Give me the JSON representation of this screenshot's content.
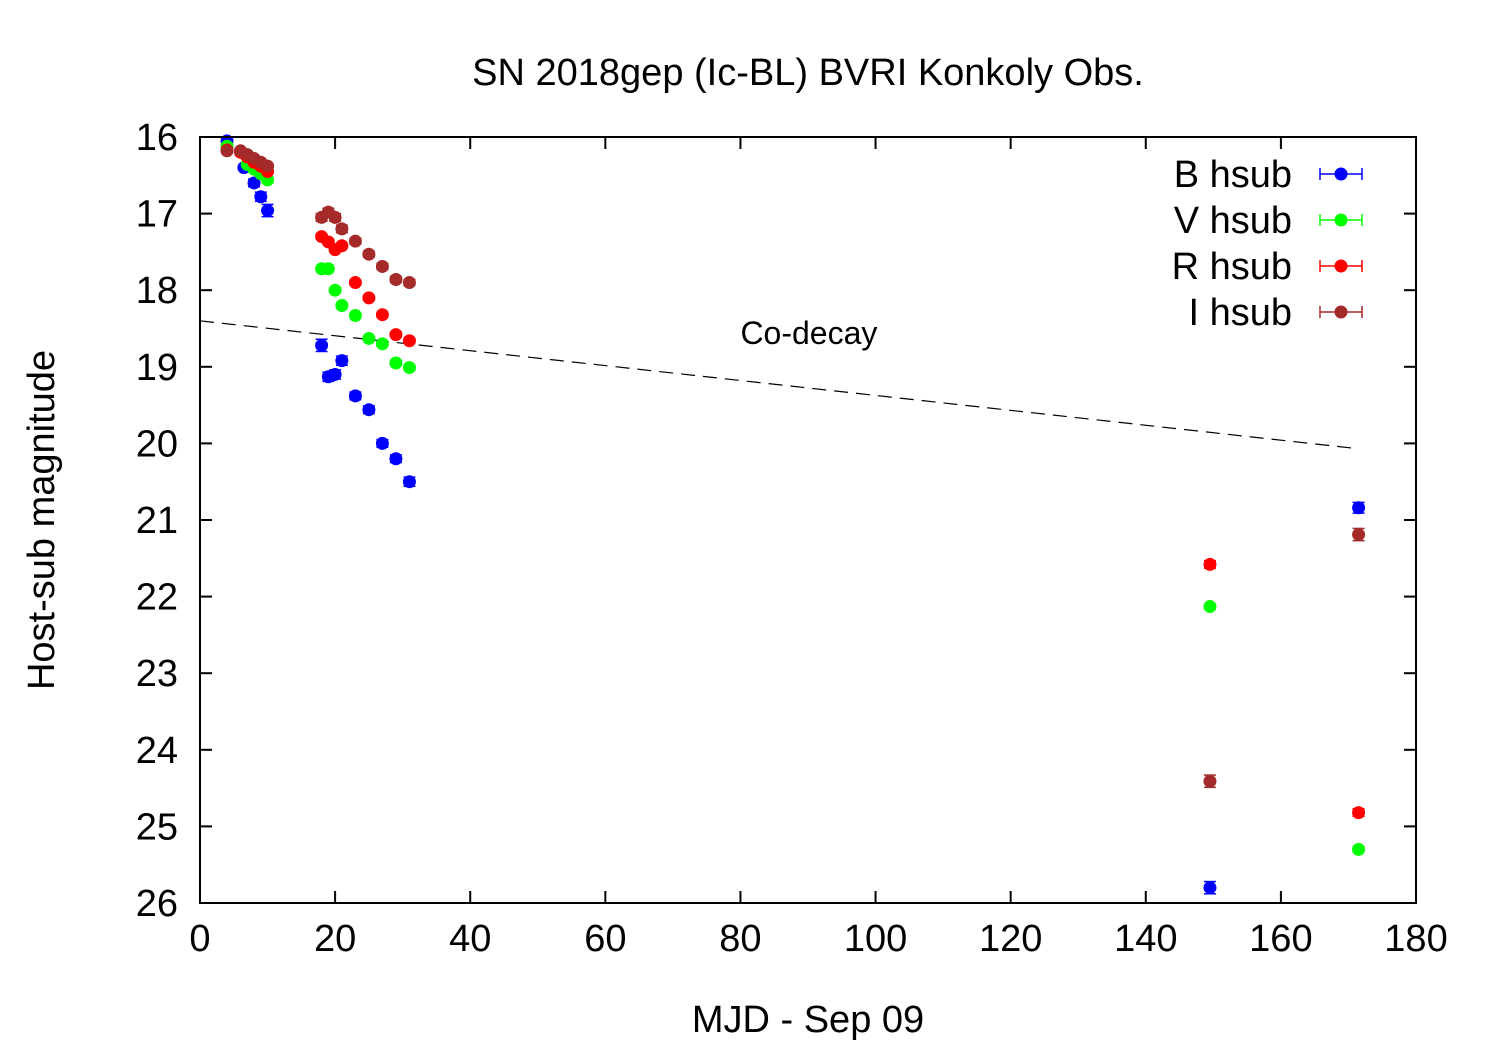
{
  "chart_data": {
    "type": "scatter",
    "title": "SN 2018gep (Ic-BL) BVRI Konkoly Obs.",
    "xlabel": "MJD - Sep 09",
    "ylabel": "Host-sub magnitude",
    "xlim": [
      0,
      180
    ],
    "ylim": [
      26,
      16
    ],
    "y_inverted": true,
    "grid": false,
    "legend_position": "top-right",
    "xticks": [
      0,
      20,
      40,
      60,
      80,
      100,
      120,
      140,
      160,
      180
    ],
    "yticks": [
      16,
      17,
      18,
      19,
      20,
      21,
      22,
      23,
      24,
      25,
      26
    ],
    "series": [
      {
        "name": "B hsub",
        "color": "#0000ff",
        "points": [
          {
            "x": 4.0,
            "y": 16.05,
            "err": 0.03
          },
          {
            "x": 6.5,
            "y": 16.4,
            "err": 0.03
          },
          {
            "x": 8.0,
            "y": 16.6,
            "err": 0.05
          },
          {
            "x": 9.0,
            "y": 16.78,
            "err": 0.06
          },
          {
            "x": 10.0,
            "y": 16.96,
            "err": 0.08
          },
          {
            "x": 18.0,
            "y": 18.72,
            "err": 0.08
          },
          {
            "x": 19.0,
            "y": 19.13,
            "err": 0.06
          },
          {
            "x": 20.0,
            "y": 19.1,
            "err": 0.06
          },
          {
            "x": 21.0,
            "y": 18.92,
            "err": 0.06
          },
          {
            "x": 23.0,
            "y": 19.38,
            "err": 0.05
          },
          {
            "x": 25.0,
            "y": 19.56,
            "err": 0.05
          },
          {
            "x": 27.0,
            "y": 20.0,
            "err": 0.05
          },
          {
            "x": 29.0,
            "y": 20.2,
            "err": 0.05
          },
          {
            "x": 31.0,
            "y": 20.5,
            "err": 0.06
          },
          {
            "x": 149.5,
            "y": 25.8,
            "err": 0.08
          },
          {
            "x": 171.5,
            "y": 20.84,
            "err": 0.07
          }
        ]
      },
      {
        "name": "V hsub",
        "color": "#00ff00",
        "points": [
          {
            "x": 4.0,
            "y": 16.12,
            "err": 0.03
          },
          {
            "x": 7.0,
            "y": 16.36,
            "err": 0.03
          },
          {
            "x": 8.0,
            "y": 16.42,
            "err": 0.03
          },
          {
            "x": 9.0,
            "y": 16.48,
            "err": 0.03
          },
          {
            "x": 10.0,
            "y": 16.56,
            "err": 0.04
          },
          {
            "x": 18.0,
            "y": 17.72,
            "err": 0.03
          },
          {
            "x": 19.0,
            "y": 17.72,
            "err": 0.03
          },
          {
            "x": 20.0,
            "y": 18.0,
            "err": 0.03
          },
          {
            "x": 21.0,
            "y": 18.2,
            "err": 0.03
          },
          {
            "x": 23.0,
            "y": 18.33,
            "err": 0.03
          },
          {
            "x": 25.0,
            "y": 18.63,
            "err": 0.03
          },
          {
            "x": 27.0,
            "y": 18.7,
            "err": 0.03
          },
          {
            "x": 29.0,
            "y": 18.95,
            "err": 0.03
          },
          {
            "x": 31.0,
            "y": 19.01,
            "err": 0.03
          },
          {
            "x": 149.5,
            "y": 22.13,
            "err": 0.03
          },
          {
            "x": 171.5,
            "y": 25.3,
            "err": 0.03
          }
        ]
      },
      {
        "name": "R hsub",
        "color": "#ff0000",
        "points": [
          {
            "x": 4.0,
            "y": 16.17,
            "err": 0.03
          },
          {
            "x": 6.0,
            "y": 16.2,
            "err": 0.03
          },
          {
            "x": 7.0,
            "y": 16.26,
            "err": 0.03
          },
          {
            "x": 8.0,
            "y": 16.33,
            "err": 0.03
          },
          {
            "x": 9.0,
            "y": 16.38,
            "err": 0.03
          },
          {
            "x": 10.0,
            "y": 16.45,
            "err": 0.03
          },
          {
            "x": 18.0,
            "y": 17.3,
            "err": 0.03
          },
          {
            "x": 19.0,
            "y": 17.37,
            "err": 0.03
          },
          {
            "x": 20.0,
            "y": 17.47,
            "err": 0.03
          },
          {
            "x": 21.0,
            "y": 17.42,
            "err": 0.03
          },
          {
            "x": 23.0,
            "y": 17.9,
            "err": 0.03
          },
          {
            "x": 25.0,
            "y": 18.1,
            "err": 0.03
          },
          {
            "x": 27.0,
            "y": 18.32,
            "err": 0.03
          },
          {
            "x": 29.0,
            "y": 18.58,
            "err": 0.03
          },
          {
            "x": 31.0,
            "y": 18.66,
            "err": 0.03
          },
          {
            "x": 149.5,
            "y": 21.58,
            "err": 0.05
          },
          {
            "x": 171.5,
            "y": 24.82,
            "err": 0.05
          }
        ]
      },
      {
        "name": "I hsub",
        "color": "#a52a2a",
        "points": [
          {
            "x": 4.0,
            "y": 16.18,
            "err": 0.03
          },
          {
            "x": 6.0,
            "y": 16.18,
            "err": 0.03
          },
          {
            "x": 7.0,
            "y": 16.23,
            "err": 0.03
          },
          {
            "x": 8.0,
            "y": 16.28,
            "err": 0.03
          },
          {
            "x": 9.0,
            "y": 16.33,
            "err": 0.03
          },
          {
            "x": 10.0,
            "y": 16.38,
            "err": 0.03
          },
          {
            "x": 18.0,
            "y": 17.05,
            "err": 0.05
          },
          {
            "x": 19.0,
            "y": 16.98,
            "err": 0.05
          },
          {
            "x": 20.0,
            "y": 17.05,
            "err": 0.05
          },
          {
            "x": 21.0,
            "y": 17.2,
            "err": 0.05
          },
          {
            "x": 23.0,
            "y": 17.36,
            "err": 0.04
          },
          {
            "x": 25.0,
            "y": 17.53,
            "err": 0.04
          },
          {
            "x": 27.0,
            "y": 17.69,
            "err": 0.04
          },
          {
            "x": 29.0,
            "y": 17.86,
            "err": 0.04
          },
          {
            "x": 31.0,
            "y": 17.9,
            "err": 0.04
          },
          {
            "x": 149.5,
            "y": 24.41,
            "err": 0.08
          },
          {
            "x": 171.5,
            "y": 21.19,
            "err": 0.08
          }
        ]
      }
    ],
    "reference_line": {
      "label": "Co-decay",
      "style": "dashed",
      "x": [
        0,
        171.5
      ],
      "y": [
        18.4,
        20.07
      ]
    }
  }
}
